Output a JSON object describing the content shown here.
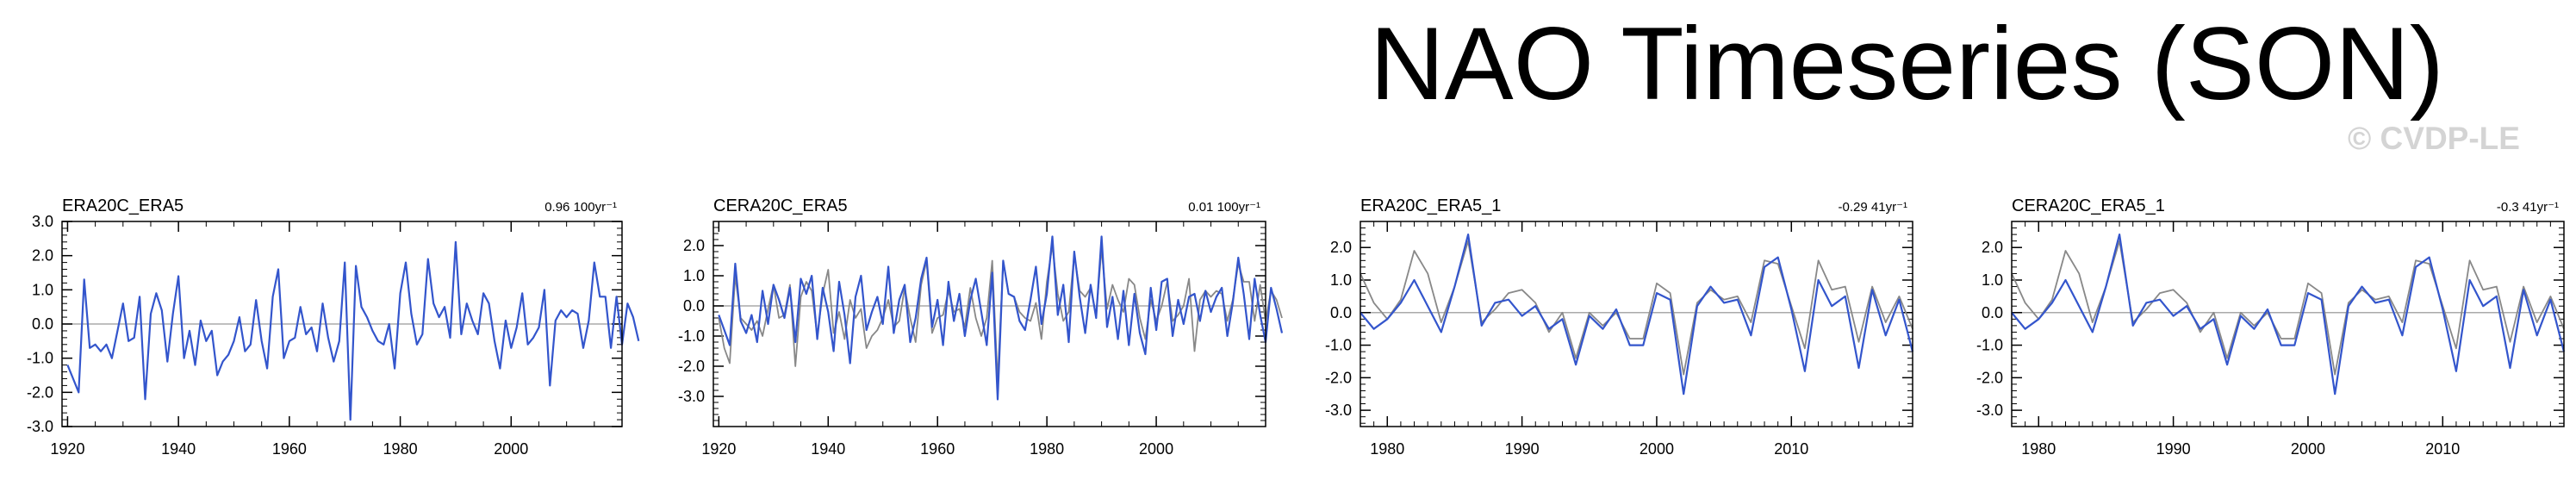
{
  "title": "NAO Timeseries (SON)",
  "watermark": "© CVDP-LE",
  "colors": {
    "primary": "#3355cc",
    "secondary": "#888888",
    "zero_line": "#aaaaaa",
    "axis": "#000000"
  },
  "chart_data": [
    {
      "type": "line",
      "title": "ERA20C_ERA5",
      "trend_label": "0.96 100yr⁻¹",
      "xlim": [
        1919,
        2020
      ],
      "ylim": [
        -3.0,
        3.0
      ],
      "xticks": [
        1920,
        1940,
        1960,
        1980,
        2000
      ],
      "yticks": [
        -3.0,
        -2.0,
        -1.0,
        0.0,
        1.0,
        2.0,
        3.0
      ],
      "xminor": 5,
      "yminor": 0.2,
      "series": [
        {
          "name": "ERA20C_ERA5",
          "x_start": 1920,
          "values": [
            -1.2,
            -1.6,
            -2.0,
            1.3,
            -0.7,
            -0.6,
            -0.8,
            -0.6,
            -1.0,
            -0.2,
            0.6,
            -0.5,
            -0.4,
            0.8,
            -2.2,
            0.3,
            0.9,
            0.4,
            -1.1,
            0.3,
            1.4,
            -1.0,
            -0.2,
            -1.2,
            0.1,
            -0.5,
            -0.2,
            -1.5,
            -1.1,
            -0.9,
            -0.5,
            0.2,
            -0.8,
            -0.6,
            0.7,
            -0.5,
            -1.3,
            0.8,
            1.6,
            -1.0,
            -0.5,
            -0.4,
            0.5,
            -0.3,
            -0.1,
            -0.8,
            0.6,
            -0.4,
            -1.1,
            -0.5,
            1.8,
            -2.8,
            1.7,
            0.5,
            0.2,
            -0.2,
            -0.5,
            -0.6,
            0.0,
            -1.3,
            0.9,
            1.8,
            0.3,
            -0.6,
            -0.3,
            1.9,
            0.6,
            0.2,
            0.5,
            -0.4,
            2.4,
            -0.3,
            0.6,
            0.1,
            -0.3,
            0.9,
            0.6,
            -0.5,
            -1.3,
            0.1,
            -0.7,
            -0.1,
            0.9,
            -0.6,
            -0.4,
            -0.1,
            1.0,
            -1.8,
            0.1,
            0.4,
            0.2,
            0.4,
            0.3,
            -0.7,
            0.1,
            1.8,
            0.8,
            0.8,
            -0.7,
            0.8,
            -0.6,
            0.6,
            0.2,
            -0.5
          ]
        }
      ]
    },
    {
      "type": "line",
      "title": "CERA20C_ERA5",
      "trend_label": "0.01 100yr⁻¹",
      "xlim": [
        1919,
        2020
      ],
      "ylim": [
        -4.0,
        2.8
      ],
      "xticks": [
        1920,
        1940,
        1960,
        1980,
        2000
      ],
      "yticks": [
        -3.0,
        -2.0,
        -1.0,
        0.0,
        1.0,
        2.0
      ],
      "xminor": 5,
      "yminor": 0.2,
      "series": [
        {
          "name": "CERA20C",
          "x_start": 1920,
          "values": [
            -0.4,
            -1.4,
            -1.9,
            1.0,
            -0.4,
            -0.6,
            -0.8,
            -0.5,
            -1.0,
            -0.1,
            0.7,
            -0.4,
            -0.3,
            0.7,
            -2.0,
            0.3,
            0.8,
            0.5,
            -1.0,
            0.4,
            1.2,
            -0.9,
            -0.2,
            -1.1,
            0.2,
            -0.4,
            -0.1,
            -1.4,
            -1.0,
            -0.8,
            -0.4,
            0.2,
            -0.7,
            -0.5,
            0.6,
            -0.4,
            -1.2,
            0.7,
            1.5,
            -0.9,
            -0.4,
            -0.3,
            0.5,
            -0.2,
            -0.1,
            -0.7,
            0.6,
            -0.4,
            -1.0,
            -0.4,
            1.5,
            -2.5,
            1.5,
            0.4,
            0.3,
            -0.2,
            -0.4,
            -0.5,
            0.1,
            -1.1,
            0.8,
            2.0,
            0.4,
            -0.5,
            -0.2,
            1.7,
            0.5,
            0.3,
            0.6,
            -0.3,
            1.9,
            -0.1,
            0.7,
            0.2,
            -0.2,
            0.9,
            0.7,
            -0.4,
            -1.1,
            0.2,
            -0.5,
            0.0,
            0.8,
            -0.5,
            -0.3,
            0.0,
            0.9,
            -1.5,
            0.2,
            0.5,
            0.3,
            0.5,
            0.4,
            -0.5,
            0.2,
            1.4,
            0.8,
            0.8,
            -0.5,
            0.7,
            -0.5,
            0.5,
            0.2,
            -0.4
          ]
        },
        {
          "name": "ERA5",
          "x_start": 1920,
          "values": [
            -0.3,
            -0.8,
            -1.3,
            1.4,
            -0.5,
            -0.9,
            -0.3,
            -1.2,
            0.5,
            -0.6,
            0.7,
            0.2,
            -0.4,
            0.6,
            -1.2,
            0.9,
            0.4,
            1.0,
            -1.1,
            0.6,
            -0.2,
            -1.5,
            0.8,
            -0.3,
            -1.9,
            0.3,
            1.0,
            -0.8,
            -0.2,
            0.3,
            -0.6,
            1.3,
            -0.9,
            0.2,
            0.7,
            -1.2,
            -0.4,
            0.9,
            1.6,
            -0.7,
            0.2,
            -1.3,
            0.8,
            -0.5,
            0.4,
            -1.0,
            0.2,
            0.9,
            -0.2,
            -1.3,
            1.1,
            -3.1,
            1.5,
            0.4,
            0.3,
            -0.5,
            -0.8,
            0.2,
            1.3,
            -0.6,
            0.4,
            2.3,
            -0.3,
            0.7,
            -1.2,
            1.8,
            0.3,
            -0.9,
            0.7,
            -0.4,
            2.3,
            -0.7,
            0.3,
            -1.1,
            0.5,
            -1.3,
            0.4,
            -0.9,
            -1.6,
            0.6,
            -0.8,
            0.8,
            0.9,
            -1.0,
            0.2,
            -0.6,
            0.3,
            0.4,
            -0.5,
            0.5,
            -0.2,
            0.3,
            0.6,
            -1.0,
            0.1,
            1.6,
            0.4,
            -1.1,
            0.9,
            -0.3,
            -1.2,
            0.6,
            -0.1,
            -0.9
          ]
        }
      ]
    },
    {
      "type": "line",
      "title": "ERA20C_ERA5_1",
      "trend_label": "-0.29 41yr⁻¹",
      "xlim": [
        1978,
        2019
      ],
      "ylim": [
        -3.5,
        2.8
      ],
      "xticks": [
        1980,
        1990,
        2000,
        2010
      ],
      "yticks": [
        -3.0,
        -2.0,
        -1.0,
        0.0,
        1.0,
        2.0
      ],
      "xminor": 1,
      "yminor": 0.2,
      "series": [
        {
          "name": "ERA20C",
          "x_start": 1978,
          "values": [
            1.2,
            0.3,
            -0.2,
            0.4,
            1.9,
            1.2,
            -0.3,
            0.8,
            2.2,
            -0.3,
            0.1,
            0.6,
            0.7,
            0.3,
            -0.6,
            0.0,
            -1.4,
            0.0,
            -0.4,
            0.0,
            -0.8,
            -0.8,
            0.9,
            0.6,
            -1.9,
            0.3,
            0.7,
            0.4,
            0.5,
            -0.3,
            1.6,
            1.5,
            0.2,
            -1.1,
            1.6,
            0.7,
            0.8,
            -0.9,
            0.8,
            -0.3,
            0.5,
            -0.5
          ]
        },
        {
          "name": "ERA5",
          "x_start": 1978,
          "values": [
            0.0,
            -0.5,
            -0.2,
            0.3,
            1.0,
            0.2,
            -0.6,
            0.8,
            2.4,
            -0.4,
            0.3,
            0.4,
            -0.1,
            0.2,
            -0.5,
            -0.2,
            -1.6,
            -0.1,
            -0.5,
            0.1,
            -1.0,
            -1.0,
            0.6,
            0.4,
            -2.5,
            0.2,
            0.8,
            0.3,
            0.4,
            -0.7,
            1.4,
            1.7,
            0.1,
            -1.8,
            1.0,
            0.2,
            0.5,
            -1.7,
            0.7,
            -0.7,
            0.4,
            -1.2
          ]
        }
      ]
    },
    {
      "type": "line",
      "title": "CERA20C_ERA5_1",
      "trend_label": "-0.3 41yr⁻¹",
      "xlim": [
        1978,
        2019
      ],
      "ylim": [
        -3.5,
        2.8
      ],
      "xticks": [
        1980,
        1990,
        2000,
        2010
      ],
      "yticks": [
        -3.0,
        -2.0,
        -1.0,
        0.0,
        1.0,
        2.0
      ],
      "xminor": 1,
      "yminor": 0.2,
      "series": [
        {
          "name": "CERA20C",
          "x_start": 1978,
          "values": [
            1.2,
            0.3,
            -0.2,
            0.4,
            1.9,
            1.2,
            -0.3,
            0.8,
            2.2,
            -0.3,
            0.1,
            0.6,
            0.7,
            0.3,
            -0.6,
            0.0,
            -1.4,
            0.0,
            -0.4,
            0.0,
            -0.8,
            -0.8,
            0.9,
            0.6,
            -1.9,
            0.3,
            0.7,
            0.4,
            0.5,
            -0.3,
            1.6,
            1.5,
            0.2,
            -1.1,
            1.6,
            0.7,
            0.8,
            -0.9,
            0.8,
            -0.3,
            0.5,
            -0.5
          ]
        },
        {
          "name": "ERA5",
          "x_start": 1978,
          "values": [
            0.0,
            -0.5,
            -0.2,
            0.3,
            1.0,
            0.2,
            -0.6,
            0.8,
            2.4,
            -0.4,
            0.3,
            0.4,
            -0.1,
            0.2,
            -0.5,
            -0.2,
            -1.6,
            -0.1,
            -0.5,
            0.1,
            -1.0,
            -1.0,
            0.6,
            0.4,
            -2.5,
            0.2,
            0.8,
            0.3,
            0.4,
            -0.7,
            1.4,
            1.7,
            0.1,
            -1.8,
            1.0,
            0.2,
            0.5,
            -1.7,
            0.7,
            -0.7,
            0.4,
            -1.2
          ]
        }
      ]
    }
  ]
}
